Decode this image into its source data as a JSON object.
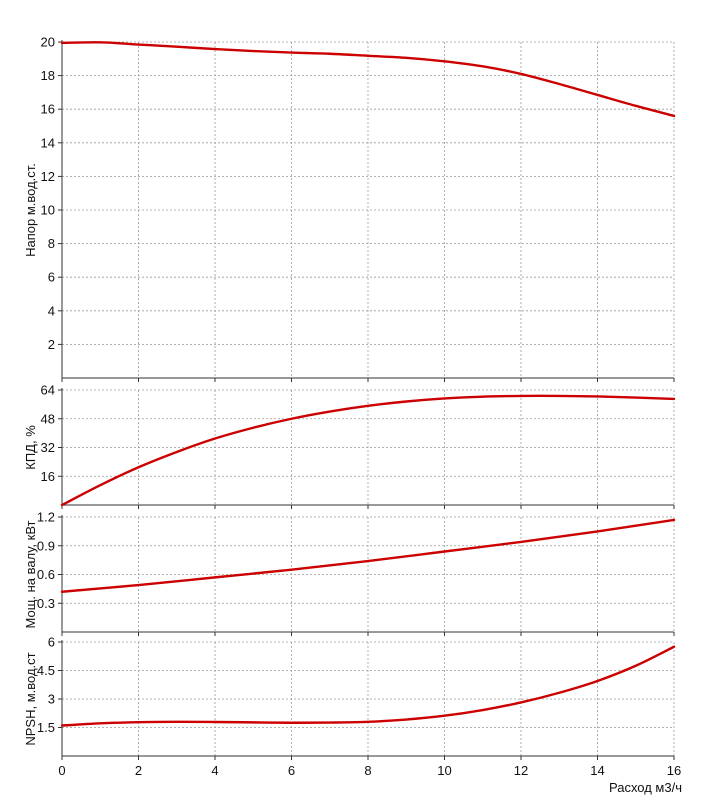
{
  "chart_data": {
    "type": "line",
    "x_axis": {
      "label": "Расход м3/ч",
      "min": 0,
      "max": 16,
      "ticks": [
        0,
        2,
        4,
        6,
        8,
        10,
        12,
        14,
        16
      ],
      "tick_labels": [
        "0",
        "2",
        "4",
        "6",
        "8",
        "10",
        "12",
        "14",
        "16"
      ]
    },
    "line_color": "#cc0000",
    "grid": true,
    "panels": [
      {
        "id": "head",
        "ylabel": "Напор м.вод.ст.",
        "ylim": [
          0,
          20
        ],
        "yticks": [
          2,
          4,
          6,
          8,
          10,
          12,
          14,
          16,
          18,
          20
        ],
        "ytick_labels": [
          "2",
          "4",
          "6",
          "8",
          "10",
          "12",
          "14",
          "16",
          "18",
          "20"
        ],
        "x": [
          0,
          1,
          2,
          3,
          4,
          5,
          6,
          7,
          8,
          9,
          10,
          11,
          12,
          13,
          14,
          15,
          16
        ],
        "y": [
          19.95,
          19.98,
          19.85,
          19.72,
          19.58,
          19.46,
          19.37,
          19.3,
          19.18,
          19.06,
          18.85,
          18.55,
          18.1,
          17.5,
          16.85,
          16.2,
          15.6
        ]
      },
      {
        "id": "efficiency",
        "ylabel": "КПД, %",
        "ylim": [
          0,
          64
        ],
        "yticks": [
          16,
          32,
          48,
          64
        ],
        "ytick_labels": [
          "16",
          "32",
          "48",
          "64"
        ],
        "x": [
          0,
          1,
          2,
          3,
          4,
          5,
          6,
          7,
          8,
          9,
          10,
          11,
          12,
          13,
          14,
          15,
          16
        ],
        "y": [
          0,
          11,
          21,
          29.5,
          37,
          43,
          48,
          52,
          55.2,
          57.6,
          59.3,
          60.3,
          60.7,
          60.7,
          60.4,
          59.8,
          59
        ]
      },
      {
        "id": "power",
        "ylabel": "Мощ. на валу, кВт",
        "ylim": [
          0,
          1.2
        ],
        "yticks": [
          0.3,
          0.6,
          0.9,
          1.2
        ],
        "ytick_labels": [
          "0.3",
          "0.6",
          "0.9",
          "1.2"
        ],
        "x": [
          0,
          2,
          4,
          6,
          8,
          10,
          12,
          14,
          16
        ],
        "y": [
          0.42,
          0.49,
          0.57,
          0.65,
          0.74,
          0.84,
          0.94,
          1.05,
          1.17
        ]
      },
      {
        "id": "npsh",
        "ylabel": "NPSH, м.вод.ст",
        "ylim": [
          0,
          6
        ],
        "yticks": [
          1.5,
          3,
          4.5,
          6
        ],
        "ytick_labels": [
          "1.5",
          "3",
          "4.5",
          "6"
        ],
        "x": [
          0,
          1,
          2,
          3,
          4,
          5,
          6,
          7,
          8,
          9,
          10,
          11,
          12,
          13,
          14,
          15,
          16
        ],
        "y": [
          1.6,
          1.72,
          1.78,
          1.8,
          1.79,
          1.77,
          1.75,
          1.76,
          1.8,
          1.92,
          2.12,
          2.42,
          2.82,
          3.33,
          3.95,
          4.75,
          5.75
        ]
      }
    ]
  }
}
